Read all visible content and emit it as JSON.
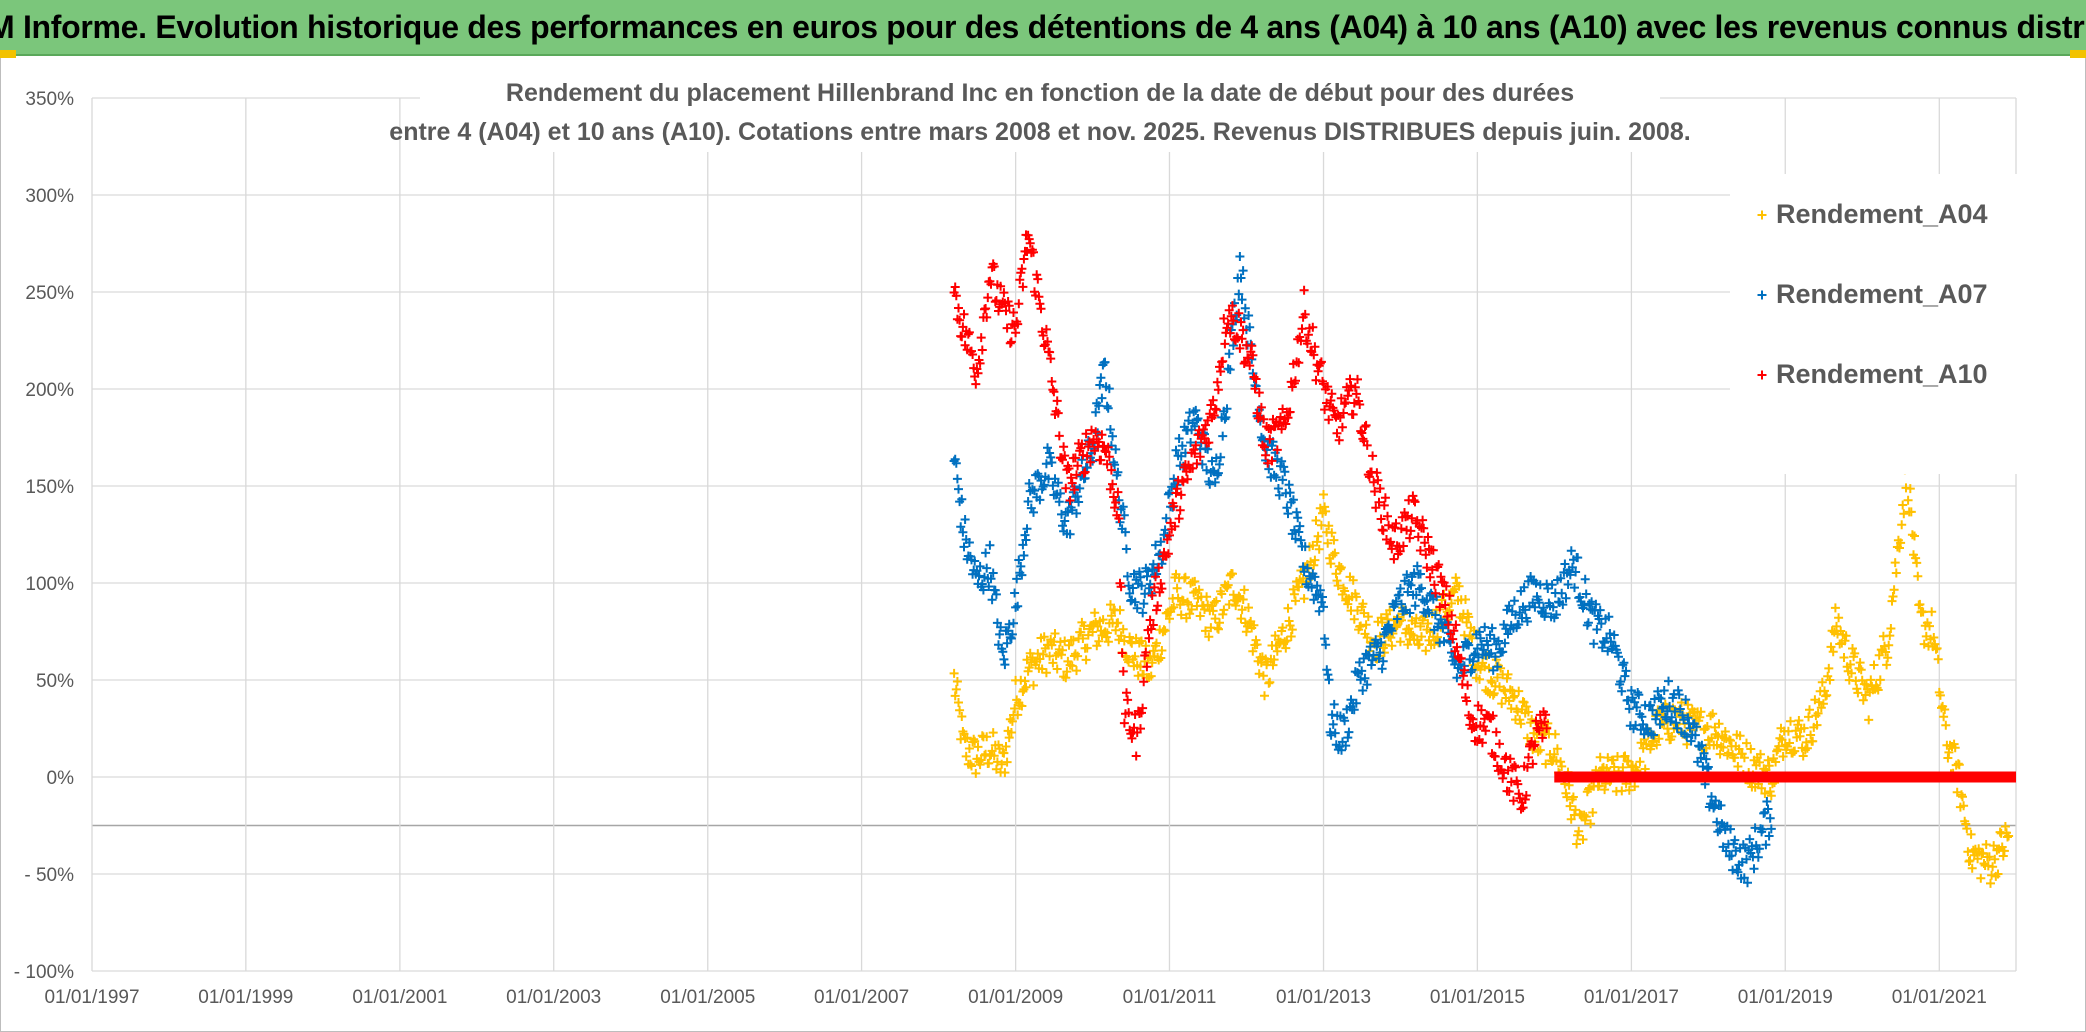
{
  "header": {
    "title": "ADAM Informe. Evolution historique des performances en euros pour des détentions de 4 ans (A04) à 10 ans (A10) avec les revenus connus distribués"
  },
  "chart_data": {
    "type": "scatter",
    "title_lines": [
      "Rendement du placement Hillenbrand Inc en fonction de la date de début pour des durées",
      "entre 4 (A04) et 10 ans (A10). Cotations entre mars 2008 et nov. 2025. Revenus DISTRIBUES depuis juin. 2008."
    ],
    "xlabel": "",
    "ylabel": "",
    "x_range": [
      "1997-01-01",
      "2021-12-31"
    ],
    "y_range": [
      -100,
      350
    ],
    "y_ticks": [
      -100,
      -50,
      0,
      50,
      100,
      150,
      200,
      250,
      300,
      350
    ],
    "y_tick_labels": [
      "- 100%",
      "- 50%",
      "0%",
      "50%",
      "100%",
      "150%",
      "200%",
      "250%",
      "300%",
      "350%"
    ],
    "x_ticks": [
      "1997-01-01",
      "1999-01-01",
      "2001-01-01",
      "2003-01-01",
      "2005-01-01",
      "2007-01-01",
      "2009-01-01",
      "2011-01-01",
      "2013-01-01",
      "2015-01-01",
      "2017-01-01",
      "2019-01-01",
      "2021-01-01"
    ],
    "x_tick_labels": [
      "01/01/1997",
      "01/01/1999",
      "01/01/2001",
      "01/01/2003",
      "01/01/2005",
      "01/01/2007",
      "01/01/2009",
      "01/01/2011",
      "01/01/2013",
      "01/01/2015",
      "01/01/2017",
      "01/01/2019",
      "01/01/2021"
    ],
    "grid": true,
    "legend_position": "top-right",
    "marker": "+",
    "series": [
      {
        "name": "Rendement_A04",
        "color": "#ffc000",
        "points": [
          [
            "2008-03-15",
            50
          ],
          [
            "2008-05-01",
            15
          ],
          [
            "2008-07-01",
            10
          ],
          [
            "2008-09-01",
            15
          ],
          [
            "2008-11-01",
            5
          ],
          [
            "2009-01-01",
            40
          ],
          [
            "2009-03-01",
            55
          ],
          [
            "2009-06-01",
            65
          ],
          [
            "2009-09-01",
            60
          ],
          [
            "2010-01-01",
            75
          ],
          [
            "2010-05-01",
            80
          ],
          [
            "2010-07-01",
            65
          ],
          [
            "2010-10-01",
            55
          ],
          [
            "2010-12-01",
            75
          ],
          [
            "2011-02-01",
            95
          ],
          [
            "2011-05-01",
            90
          ],
          [
            "2011-08-01",
            80
          ],
          [
            "2011-11-01",
            100
          ],
          [
            "2012-01-01",
            85
          ],
          [
            "2012-04-01",
            50
          ],
          [
            "2012-07-01",
            75
          ],
          [
            "2012-10-01",
            100
          ],
          [
            "2013-01-01",
            135
          ],
          [
            "2013-03-01",
            110
          ],
          [
            "2013-06-01",
            90
          ],
          [
            "2013-09-01",
            70
          ],
          [
            "2014-01-01",
            80
          ],
          [
            "2014-04-01",
            70
          ],
          [
            "2014-07-01",
            80
          ],
          [
            "2014-10-01",
            95
          ],
          [
            "2015-01-01",
            60
          ],
          [
            "2015-04-01",
            50
          ],
          [
            "2015-07-01",
            40
          ],
          [
            "2015-10-01",
            20
          ],
          [
            "2016-01-01",
            15
          ],
          [
            "2016-03-01",
            -5
          ],
          [
            "2016-05-01",
            -30
          ],
          [
            "2016-08-01",
            0
          ],
          [
            "2016-11-01",
            0
          ],
          [
            "2017-02-01",
            5
          ],
          [
            "2017-05-01",
            25
          ],
          [
            "2017-08-01",
            30
          ],
          [
            "2017-11-01",
            25
          ],
          [
            "2018-02-01",
            25
          ],
          [
            "2018-05-01",
            15
          ],
          [
            "2018-08-01",
            5
          ],
          [
            "2018-11-01",
            0
          ],
          [
            "2019-01-01",
            25
          ],
          [
            "2019-04-01",
            20
          ],
          [
            "2019-07-01",
            40
          ],
          [
            "2019-09-01",
            80
          ],
          [
            "2019-11-01",
            60
          ],
          [
            "2020-02-01",
            40
          ],
          [
            "2020-05-01",
            70
          ],
          [
            "2020-08-01",
            160
          ],
          [
            "2020-10-01",
            80
          ],
          [
            "2020-12-01",
            75
          ],
          [
            "2021-02-01",
            20
          ],
          [
            "2021-04-01",
            0
          ],
          [
            "2021-06-01",
            -40
          ],
          [
            "2021-09-01",
            -45
          ],
          [
            "2021-12-01",
            -30
          ]
        ]
      },
      {
        "name": "Rendement_A07",
        "color": "#0070c0",
        "points": [
          [
            "2008-03-15",
            165
          ],
          [
            "2008-05-01",
            125
          ],
          [
            "2008-07-01",
            100
          ],
          [
            "2008-09-01",
            110
          ],
          [
            "2008-11-01",
            60
          ],
          [
            "2009-01-01",
            90
          ],
          [
            "2009-03-01",
            140
          ],
          [
            "2009-06-01",
            160
          ],
          [
            "2009-09-01",
            130
          ],
          [
            "2010-01-01",
            170
          ],
          [
            "2010-03-01",
            210
          ],
          [
            "2010-05-01",
            150
          ],
          [
            "2010-07-01",
            100
          ],
          [
            "2010-09-01",
            95
          ],
          [
            "2010-12-01",
            120
          ],
          [
            "2011-02-01",
            160
          ],
          [
            "2011-05-01",
            185
          ],
          [
            "2011-08-01",
            150
          ],
          [
            "2011-10-01",
            200
          ],
          [
            "2011-12-01",
            265
          ],
          [
            "2012-02-01",
            210
          ],
          [
            "2012-04-01",
            170
          ],
          [
            "2012-07-01",
            150
          ],
          [
            "2012-10-01",
            110
          ],
          [
            "2013-01-01",
            90
          ],
          [
            "2013-02-01",
            30
          ],
          [
            "2013-04-01",
            20
          ],
          [
            "2013-07-01",
            55
          ],
          [
            "2013-10-01",
            65
          ],
          [
            "2014-01-01",
            90
          ],
          [
            "2014-04-01",
            100
          ],
          [
            "2014-07-01",
            80
          ],
          [
            "2014-10-01",
            55
          ],
          [
            "2015-01-01",
            70
          ],
          [
            "2015-04-01",
            65
          ],
          [
            "2015-07-01",
            85
          ],
          [
            "2015-10-01",
            95
          ],
          [
            "2016-01-01",
            90
          ],
          [
            "2016-04-01",
            110
          ],
          [
            "2016-07-01",
            80
          ],
          [
            "2016-10-01",
            70
          ],
          [
            "2017-01-01",
            35
          ],
          [
            "2017-04-01",
            30
          ],
          [
            "2017-07-01",
            40
          ],
          [
            "2017-10-01",
            30
          ],
          [
            "2018-01-01",
            -5
          ],
          [
            "2018-04-01",
            -35
          ],
          [
            "2018-07-01",
            -45
          ],
          [
            "2018-10-01",
            -25
          ],
          [
            "2018-11-01",
            -15
          ]
        ]
      },
      {
        "name": "Rendement_A10",
        "color": "#ff0000",
        "points": [
          [
            "2008-03-15",
            250
          ],
          [
            "2008-05-01",
            230
          ],
          [
            "2008-07-01",
            210
          ],
          [
            "2008-09-01",
            260
          ],
          [
            "2008-11-01",
            240
          ],
          [
            "2009-01-01",
            230
          ],
          [
            "2009-03-01",
            280
          ],
          [
            "2009-06-01",
            220
          ],
          [
            "2009-09-01",
            150
          ],
          [
            "2010-01-01",
            175
          ],
          [
            "2010-03-01",
            170
          ],
          [
            "2010-05-01",
            140
          ],
          [
            "2010-06-01",
            35
          ],
          [
            "2010-08-01",
            20
          ],
          [
            "2010-10-01",
            80
          ],
          [
            "2010-12-01",
            110
          ],
          [
            "2011-02-01",
            140
          ],
          [
            "2011-05-01",
            165
          ],
          [
            "2011-08-01",
            190
          ],
          [
            "2011-10-01",
            240
          ],
          [
            "2011-12-01",
            230
          ],
          [
            "2012-02-01",
            210
          ],
          [
            "2012-04-01",
            170
          ],
          [
            "2012-07-01",
            180
          ],
          [
            "2012-10-01",
            240
          ],
          [
            "2013-01-01",
            200
          ],
          [
            "2013-03-01",
            180
          ],
          [
            "2013-06-01",
            200
          ],
          [
            "2013-09-01",
            150
          ],
          [
            "2013-12-01",
            120
          ],
          [
            "2014-03-01",
            135
          ],
          [
            "2014-06-01",
            110
          ],
          [
            "2014-09-01",
            80
          ],
          [
            "2014-12-01",
            30
          ],
          [
            "2015-03-01",
            25
          ],
          [
            "2015-06-01",
            0
          ],
          [
            "2015-08-01",
            -10
          ],
          [
            "2015-10-01",
            20
          ],
          [
            "2015-12-01",
            25
          ]
        ],
        "flat_segment": {
          "from": "2016-01-01",
          "to": "2021-12-31",
          "value": 0
        }
      }
    ]
  }
}
